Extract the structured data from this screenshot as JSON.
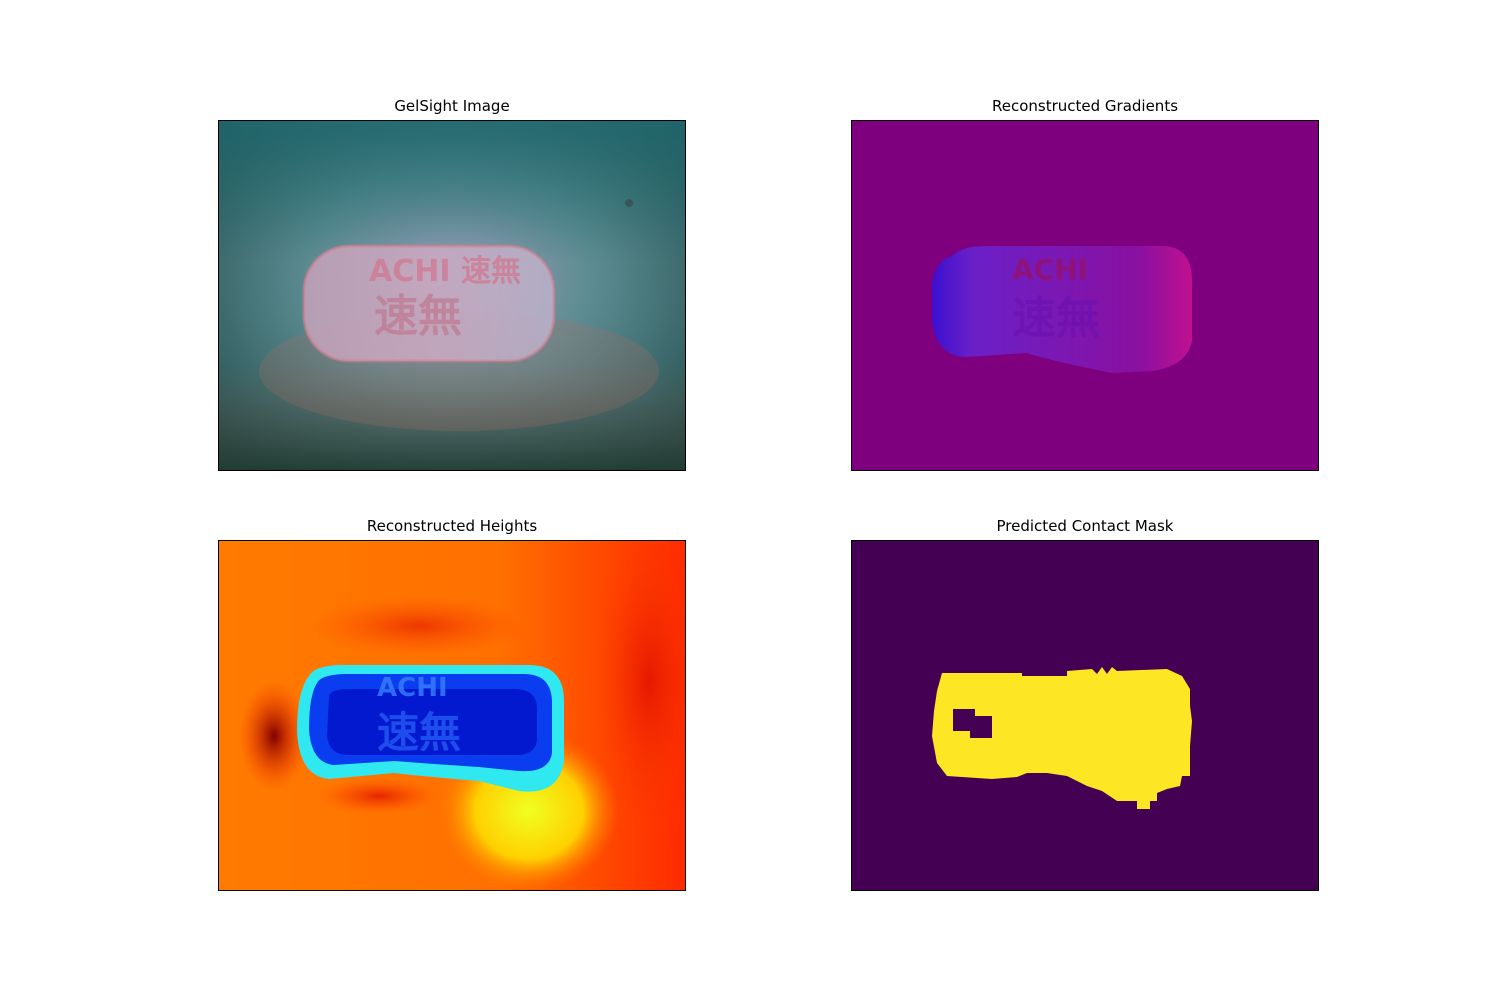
{
  "figure": {
    "panels": [
      {
        "title": "GelSight Image",
        "colormap": "rgb-photo"
      },
      {
        "title": "Reconstructed Gradients",
        "colormap": "purple-normals"
      },
      {
        "title": "Reconstructed Heights",
        "colormap": "jet"
      },
      {
        "title": "Predicted Contact Mask",
        "colormap": "viridis-binary"
      }
    ],
    "object_text": "ACHI 速無"
  },
  "colors": {
    "mask_background": "#440154",
    "mask_foreground": "#fde725",
    "gradient_background": "#7f007f",
    "height_low": "#0020e0",
    "height_high": "#ff2000"
  }
}
